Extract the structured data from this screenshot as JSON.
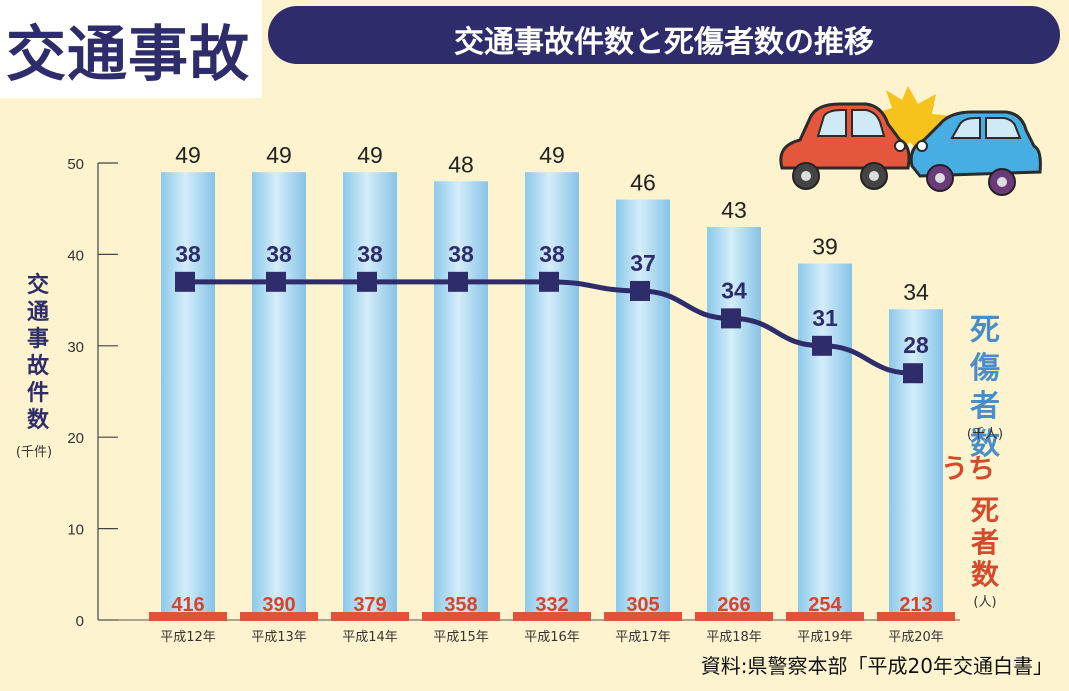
{
  "badge": "交通事故",
  "title": "交通事故件数と死傷者数の推移",
  "source": "資料:県警察本部「平成20年交通白書」",
  "chart_data": {
    "type": "bar",
    "categories": [
      "平成12年",
      "平成13年",
      "平成14年",
      "平成15年",
      "平成16年",
      "平成17年",
      "平成18年",
      "平成19年",
      "平成20年"
    ],
    "ylim": [
      0,
      50
    ],
    "yticks": [
      0,
      10,
      20,
      30,
      40,
      50
    ],
    "left_axis_label": "交通事故件数",
    "left_axis_unit": "(千件)",
    "series": [
      {
        "name": "交通事故件数",
        "kind": "bar",
        "unit": "千件",
        "color": "#a9d8f0",
        "values": [
          49,
          49,
          49,
          48,
          49,
          46,
          43,
          39,
          34
        ]
      },
      {
        "name": "死傷者数",
        "kind": "line",
        "unit": "千人",
        "color": "#2e2c6a",
        "values": [
          38,
          38,
          38,
          38,
          38,
          37,
          34,
          31,
          28
        ],
        "plotted_values": [
          37,
          37,
          37,
          37,
          37,
          36,
          33,
          30,
          27
        ]
      },
      {
        "name": "うち死者数",
        "kind": "bar-strip",
        "unit": "人",
        "color": "#e0533a",
        "values": [
          416,
          390,
          379,
          358,
          332,
          305,
          266,
          254,
          213
        ]
      }
    ],
    "legend": [
      {
        "text": "死傷者数",
        "unit": "(千人)",
        "color": "#4a8ec9"
      },
      {
        "text": "うち死者数",
        "unit": "(人)",
        "color": "#d64a2b"
      }
    ],
    "grid": false
  },
  "icons": [
    "car-crash-icon"
  ]
}
